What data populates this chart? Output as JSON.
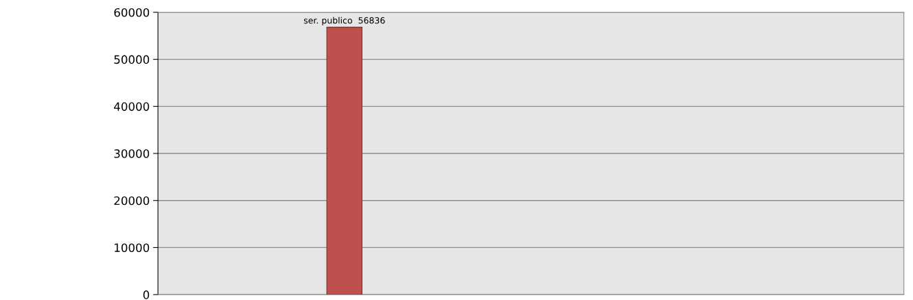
{
  "chart_data": {
    "type": "bar",
    "categories": [
      null,
      null
    ],
    "values": [
      56836,
      null
    ],
    "color": "#c0504d",
    "value_labels": [
      "ser. publico  56836",
      null
    ],
    "ylim": [
      0,
      60000
    ],
    "yticks": [
      0,
      10000,
      20000,
      30000,
      40000,
      50000,
      60000
    ],
    "grid": "y"
  }
}
